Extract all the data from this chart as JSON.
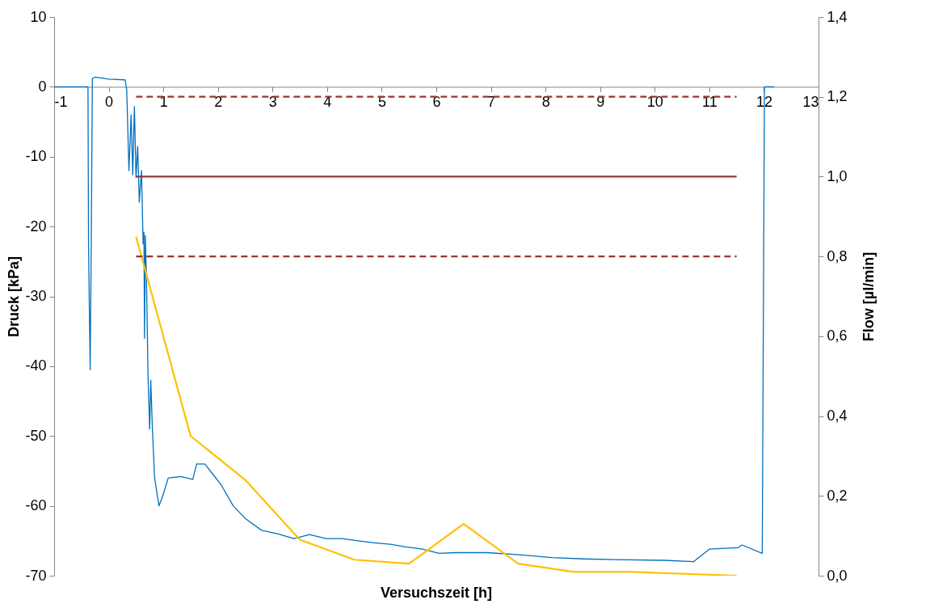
{
  "chart_data": {
    "type": "line",
    "xlabel": "Versuchszeit [h]",
    "ylabel": "Druck [kPa]",
    "y2label": "Flow [µl/min]",
    "xlim": [
      -1,
      13
    ],
    "xticks": [
      -1,
      0,
      1,
      2,
      3,
      4,
      5,
      6,
      7,
      8,
      9,
      10,
      11,
      12,
      13
    ],
    "ylim": [
      -70,
      10
    ],
    "yticks": [
      -70,
      -60,
      -50,
      -40,
      -30,
      -20,
      -10,
      0,
      10
    ],
    "y2lim": [
      0,
      1.4
    ],
    "y2ticks": [
      {
        "value": 0,
        "label": "0,0"
      },
      {
        "value": 0.2,
        "label": "0,2"
      },
      {
        "value": 0.4,
        "label": "0,4"
      },
      {
        "value": 0.6,
        "label": "0,6"
      },
      {
        "value": 0.8,
        "label": "0,8"
      },
      {
        "value": 1.0,
        "label": "1,0"
      },
      {
        "value": 1.2,
        "label": "1,2"
      },
      {
        "value": 1.4,
        "label": "1,4"
      }
    ],
    "grid": false,
    "series": [
      {
        "color": "#0070c0",
        "x": [
          -1,
          -0.38,
          -0.37,
          -0.34,
          -0.32,
          -0.3,
          -0.24,
          0,
          0.3,
          0.33,
          0.37,
          0.41,
          0.44,
          0.47,
          0.5,
          0.53,
          0.56,
          0.6,
          0.63,
          0.645,
          0.655,
          0.67,
          0.69,
          0.72,
          0.75,
          0.77,
          0.8,
          0.84,
          0.92,
          0.98,
          1.09,
          1.32,
          1.54,
          1.61,
          1.76,
          1.91,
          2.06,
          2.28,
          2.5,
          2.8,
          3.09,
          3.39,
          3.68,
          3.98,
          4.27,
          4.57,
          4.87,
          5.16,
          5.46,
          5.75,
          6.05,
          6.35,
          6.94,
          7.53,
          8.12,
          8.71,
          9.3,
          10.19,
          10.71,
          11.0,
          11.52,
          11.6,
          11.97,
          12.01,
          12.19
        ],
        "values": [
          0,
          0,
          -22.5,
          -40.5,
          -22.5,
          1.2,
          1.4,
          1.1,
          1.0,
          -0.5,
          -12,
          -4,
          -12.6,
          -2.8,
          -13,
          -8.5,
          -16.5,
          -12,
          -22.5,
          -20.8,
          -36,
          -21.3,
          -27,
          -41.5,
          -49,
          -42,
          -49,
          -56,
          -60,
          -58.8,
          -56,
          -55.8,
          -56.2,
          -54,
          -54,
          -55.5,
          -57,
          -60,
          -61.8,
          -63.5,
          -64,
          -64.7,
          -64.1,
          -64.7,
          -64.7,
          -65,
          -65.3,
          -65.5,
          -65.9,
          -66.2,
          -66.8,
          -66.7,
          -66.7,
          -67,
          -67.4,
          -67.6,
          -67.7,
          -67.8,
          -68,
          -66.2,
          -66,
          -65.6,
          -66.8,
          0,
          0
        ]
      },
      {
        "axis": "y2",
        "color": "#ffc000",
        "x": [
          0.5,
          1.5,
          2.5,
          3.5,
          4.5,
          5.5,
          6.5,
          7.5,
          8.5,
          9.5,
          11.5
        ],
        "values": [
          0.85,
          0.35,
          0.24,
          0.09,
          0.04,
          0.03,
          0.13,
          0.03,
          0.01,
          0.01,
          0.0
        ]
      },
      {
        "axis": "y2",
        "color": "#953735",
        "line_style": "dashed",
        "x": [
          0.5,
          11.5
        ],
        "values": [
          1.2,
          1.2
        ]
      },
      {
        "axis": "y2",
        "color": "#953735",
        "line_style": "solid",
        "x": [
          0.5,
          11.5
        ],
        "values": [
          1.0,
          1.0
        ]
      },
      {
        "axis": "y2",
        "color": "#953735",
        "line_style": "dashed",
        "x": [
          0.5,
          11.5
        ],
        "values": [
          0.8,
          0.8
        ]
      }
    ]
  }
}
